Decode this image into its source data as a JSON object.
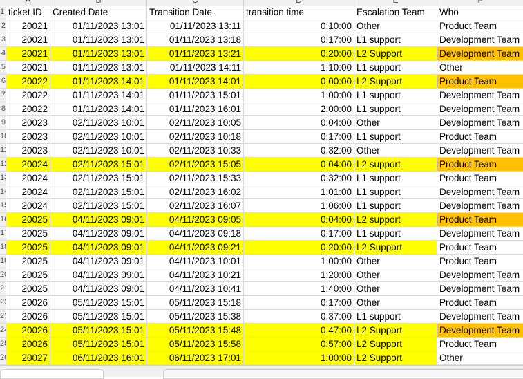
{
  "column_letters": [
    "A",
    "B",
    "C",
    "D",
    "E",
    "F"
  ],
  "headers": {
    "ticket_id": "ticket ID",
    "created": "Created Date",
    "transition": "Transition Date",
    "time": "transition time",
    "team": "Escalation Team",
    "who": "Who"
  },
  "colors": {
    "row_highlight": "#ffff00",
    "who_highlight": "#ffc000"
  },
  "rows": [
    {
      "rn": "2",
      "id": "20021",
      "created": "01/11/2023 13:01",
      "transition": "01/11/2023 13:11",
      "time": "0:10:00",
      "team": "Other",
      "who": "Product Team",
      "hl": false,
      "who_hl": false
    },
    {
      "rn": "3",
      "id": "20021",
      "created": "01/11/2023 13:01",
      "transition": "01/11/2023 13:18",
      "time": "0:17:00",
      "team": "L1 support",
      "who": "Development Team",
      "hl": false,
      "who_hl": false
    },
    {
      "rn": "4",
      "id": "20021",
      "created": "01/11/2023 13:01",
      "transition": "01/11/2023 13:21",
      "time": "0:20:00",
      "team": "L2 Support",
      "who": "Development Team",
      "hl": true,
      "who_hl": true
    },
    {
      "rn": "5",
      "id": "20021",
      "created": "01/11/2023 13:01",
      "transition": "01/11/2023 14:11",
      "time": "1:10:00",
      "team": "L1 support",
      "who": "Other",
      "hl": false,
      "who_hl": false
    },
    {
      "rn": "6",
      "id": "20022",
      "created": "01/11/2023 14:01",
      "transition": "01/11/2023 14:01",
      "time": "0:00:00",
      "team": "L2 Support",
      "who": "Product Team",
      "hl": true,
      "who_hl": true
    },
    {
      "rn": "7",
      "id": "20022",
      "created": "01/11/2023 14:01",
      "transition": "01/11/2023 15:01",
      "time": "1:00:00",
      "team": "L1 support",
      "who": "Development Team",
      "hl": false,
      "who_hl": false
    },
    {
      "rn": "8",
      "id": "20022",
      "created": "01/11/2023 14:01",
      "transition": "01/11/2023 16:01",
      "time": "2:00:00",
      "team": "L1 support",
      "who": "Development Team",
      "hl": false,
      "who_hl": false
    },
    {
      "rn": "9",
      "id": "20023",
      "created": "02/11/2023 10:01",
      "transition": "02/11/2023 10:05",
      "time": "0:04:00",
      "team": "Other",
      "who": "Development Team",
      "hl": false,
      "who_hl": false
    },
    {
      "rn": "10",
      "id": "20023",
      "created": "02/11/2023 10:01",
      "transition": "02/11/2023 10:18",
      "time": "0:17:00",
      "team": "L1 support",
      "who": "Product Team",
      "hl": false,
      "who_hl": false
    },
    {
      "rn": "11",
      "id": "20023",
      "created": "02/11/2023 10:01",
      "transition": "02/11/2023 10:33",
      "time": "0:32:00",
      "team": "Other",
      "who": "Development Team",
      "hl": false,
      "who_hl": false
    },
    {
      "rn": "12",
      "id": "20024",
      "created": "02/11/2023 15:01",
      "transition": "02/11/2023 15:05",
      "time": "0:04:00",
      "team": "L2 support",
      "who": "Product Team",
      "hl": true,
      "who_hl": true
    },
    {
      "rn": "13",
      "id": "20024",
      "created": "02/11/2023 15:01",
      "transition": "02/11/2023 15:33",
      "time": "0:32:00",
      "team": "L1 support",
      "who": "Product Team",
      "hl": false,
      "who_hl": false
    },
    {
      "rn": "14",
      "id": "20024",
      "created": "02/11/2023 15:01",
      "transition": "02/11/2023 16:02",
      "time": "1:01:00",
      "team": "L1 support",
      "who": "Development Team",
      "hl": false,
      "who_hl": false
    },
    {
      "rn": "15",
      "id": "20024",
      "created": "02/11/2023 15:01",
      "transition": "02/11/2023 16:07",
      "time": "1:06:00",
      "team": "L1 support",
      "who": "Development Team",
      "hl": false,
      "who_hl": false
    },
    {
      "rn": "16",
      "id": "20025",
      "created": "04/11/2023 09:01",
      "transition": "04/11/2023 09:05",
      "time": "0:04:00",
      "team": "L2 support",
      "who": "Product Team",
      "hl": true,
      "who_hl": true
    },
    {
      "rn": "17",
      "id": "20025",
      "created": "04/11/2023 09:01",
      "transition": "04/11/2023 09:18",
      "time": "0:17:00",
      "team": "L1 support",
      "who": "Development Team",
      "hl": false,
      "who_hl": false
    },
    {
      "rn": "18",
      "id": "20025",
      "created": "04/11/2023 09:01",
      "transition": "04/11/2023 09:21",
      "time": "0:20:00",
      "team": "L2 Support",
      "who": "Product Team",
      "hl": true,
      "who_hl": false
    },
    {
      "rn": "19",
      "id": "20025",
      "created": "04/11/2023 09:01",
      "transition": "04/11/2023 10:01",
      "time": "1:00:00",
      "team": "Other",
      "who": "Product Team",
      "hl": false,
      "who_hl": false
    },
    {
      "rn": "20",
      "id": "20025",
      "created": "04/11/2023 09:01",
      "transition": "04/11/2023 10:21",
      "time": "1:20:00",
      "team": "Other",
      "who": "Development Team",
      "hl": false,
      "who_hl": false
    },
    {
      "rn": "21",
      "id": "20025",
      "created": "04/11/2023 09:01",
      "transition": "04/11/2023 10:41",
      "time": "1:40:00",
      "team": "Other",
      "who": "Development Team",
      "hl": false,
      "who_hl": false
    },
    {
      "rn": "22",
      "id": "20026",
      "created": "05/11/2023 15:01",
      "transition": "05/11/2023 15:18",
      "time": "0:17:00",
      "team": "Other",
      "who": "Product Team",
      "hl": false,
      "who_hl": false
    },
    {
      "rn": "23",
      "id": "20026",
      "created": "05/11/2023 15:01",
      "transition": "05/11/2023 15:38",
      "time": "0:37:00",
      "team": "L1 support",
      "who": "Development Team",
      "hl": false,
      "who_hl": false
    },
    {
      "rn": "24",
      "id": "20026",
      "created": "05/11/2023 15:01",
      "transition": "05/11/2023 15:48",
      "time": "0:47:00",
      "team": "L2 Support",
      "who": "Development Team",
      "hl": true,
      "who_hl": true
    },
    {
      "rn": "25",
      "id": "20026",
      "created": "05/11/2023 15:01",
      "transition": "05/11/2023 15:58",
      "time": "0:57:00",
      "team": "L2 Support",
      "who": "Product Team",
      "hl": true,
      "who_hl": false
    },
    {
      "rn": "26",
      "id": "20027",
      "created": "06/11/2023 16:01",
      "transition": "06/11/2023 17:01",
      "time": "1:00:00",
      "team": "L2 Support",
      "who": "Other",
      "hl": true,
      "who_hl": false
    }
  ]
}
